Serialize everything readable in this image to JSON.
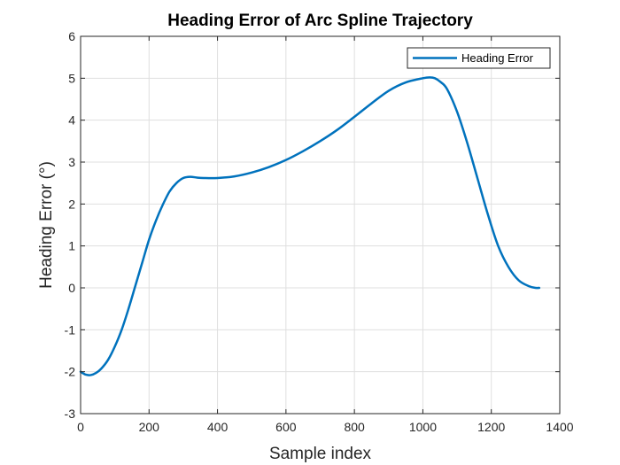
{
  "chart_data": {
    "type": "line",
    "title": "Heading Error of Arc Spline Trajectory",
    "xlabel": "Sample index",
    "ylabel": "Heading Error (°)",
    "xlim": [
      0,
      1400
    ],
    "ylim": [
      -3,
      6
    ],
    "xticks": [
      0,
      200,
      400,
      600,
      800,
      1000,
      1200,
      1400
    ],
    "yticks": [
      -3,
      -2,
      -1,
      0,
      1,
      2,
      3,
      4,
      5,
      6
    ],
    "grid": true,
    "legend_position": "top-right",
    "series": [
      {
        "name": "Heading Error",
        "color": "#0072BD",
        "x": [
          0,
          15,
          30,
          45,
          60,
          80,
          100,
          120,
          140,
          160,
          180,
          200,
          220,
          240,
          260,
          280,
          300,
          320,
          340,
          360,
          400,
          450,
          500,
          550,
          600,
          650,
          700,
          750,
          800,
          850,
          900,
          950,
          1000,
          1020,
          1035,
          1050,
          1070,
          1100,
          1130,
          1160,
          1190,
          1220,
          1250,
          1280,
          1310,
          1330,
          1340
        ],
        "y": [
          -2.0,
          -2.07,
          -2.08,
          -2.03,
          -1.93,
          -1.72,
          -1.4,
          -1.0,
          -0.5,
          0.05,
          0.6,
          1.15,
          1.6,
          1.98,
          2.3,
          2.5,
          2.62,
          2.65,
          2.63,
          2.62,
          2.62,
          2.66,
          2.75,
          2.88,
          3.05,
          3.26,
          3.5,
          3.77,
          4.08,
          4.4,
          4.7,
          4.9,
          5.0,
          5.02,
          5.0,
          4.92,
          4.75,
          4.2,
          3.45,
          2.6,
          1.75,
          1.0,
          0.5,
          0.18,
          0.04,
          0.0,
          0.0
        ]
      }
    ]
  }
}
